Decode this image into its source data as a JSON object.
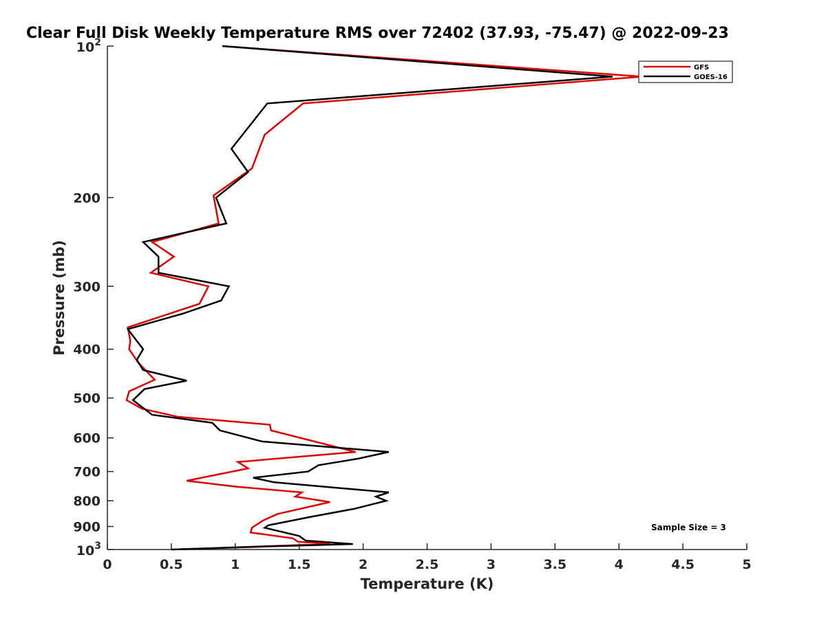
{
  "chart_data": {
    "type": "line",
    "title": "Clear Full Disk Weekly Temperature RMS over 72402 (37.93, -75.47) @ 2022-09-23",
    "xlabel": "Temperature (K)",
    "ylabel": "Pressure (mb)",
    "xlim": [
      0,
      5
    ],
    "ylim": [
      1000,
      100
    ],
    "yscale": "log",
    "grid": false,
    "legend_position": "top-right",
    "x_ticks": [
      "0",
      "0.5",
      "1",
      "1.5",
      "2",
      "2.5",
      "3",
      "3.5",
      "4",
      "4.5",
      "5"
    ],
    "x_tick_values": [
      0,
      0.5,
      1,
      1.5,
      2,
      2.5,
      3,
      3.5,
      4,
      4.5,
      5
    ],
    "y_ticks": [
      {
        "value": 100,
        "base": "10",
        "exp": "2"
      },
      {
        "value": 200,
        "label": "200"
      },
      {
        "value": 300,
        "label": "300"
      },
      {
        "value": 400,
        "label": "400"
      },
      {
        "value": 500,
        "label": "500"
      },
      {
        "value": 600,
        "label": "600"
      },
      {
        "value": 700,
        "label": "700"
      },
      {
        "value": 800,
        "label": "800"
      },
      {
        "value": 900,
        "label": "900"
      },
      {
        "value": 1000,
        "base": "10",
        "exp": "3"
      }
    ],
    "series": [
      {
        "name": "GFS",
        "color": "#e00000",
        "points": [
          [
            0.9,
            100
          ],
          [
            4.18,
            115
          ],
          [
            1.53,
            130
          ],
          [
            1.23,
            150
          ],
          [
            1.13,
            175
          ],
          [
            0.83,
            198
          ],
          [
            0.87,
            225
          ],
          [
            0.35,
            245
          ],
          [
            0.52,
            262
          ],
          [
            0.34,
            282
          ],
          [
            0.79,
            300
          ],
          [
            0.72,
            325
          ],
          [
            0.16,
            362
          ],
          [
            0.18,
            385
          ],
          [
            0.17,
            400
          ],
          [
            0.24,
            425
          ],
          [
            0.37,
            460
          ],
          [
            0.17,
            485
          ],
          [
            0.15,
            505
          ],
          [
            0.27,
            525
          ],
          [
            0.55,
            545
          ],
          [
            1.27,
            565
          ],
          [
            1.28,
            580
          ],
          [
            1.94,
            640
          ],
          [
            1.02,
            670
          ],
          [
            1.1,
            690
          ],
          [
            0.62,
            730
          ],
          [
            1.0,
            750
          ],
          [
            1.52,
            770
          ],
          [
            1.47,
            785
          ],
          [
            1.74,
            805
          ],
          [
            1.33,
            850
          ],
          [
            1.22,
            875
          ],
          [
            1.13,
            905
          ],
          [
            1.12,
            925
          ],
          [
            1.45,
            950
          ],
          [
            1.49,
            965
          ],
          [
            1.74,
            975
          ],
          [
            0.5,
            1000
          ]
        ]
      },
      {
        "name": "GOES-16",
        "color": "#000000",
        "points": [
          [
            0.9,
            100
          ],
          [
            3.95,
            115
          ],
          [
            1.25,
            130
          ],
          [
            0.97,
            160
          ],
          [
            1.1,
            178
          ],
          [
            0.85,
            200
          ],
          [
            0.93,
            225
          ],
          [
            0.28,
            245
          ],
          [
            0.4,
            262
          ],
          [
            0.4,
            282
          ],
          [
            0.95,
            300
          ],
          [
            0.89,
            320
          ],
          [
            0.59,
            340
          ],
          [
            0.16,
            365
          ],
          [
            0.28,
            400
          ],
          [
            0.23,
            420
          ],
          [
            0.28,
            440
          ],
          [
            0.62,
            462
          ],
          [
            0.29,
            480
          ],
          [
            0.2,
            505
          ],
          [
            0.35,
            540
          ],
          [
            0.82,
            560
          ],
          [
            0.88,
            580
          ],
          [
            1.21,
            610
          ],
          [
            2.2,
            640
          ],
          [
            1.96,
            660
          ],
          [
            1.65,
            680
          ],
          [
            1.57,
            700
          ],
          [
            1.14,
            720
          ],
          [
            1.3,
            735
          ],
          [
            2.2,
            770
          ],
          [
            2.1,
            785
          ],
          [
            2.18,
            800
          ],
          [
            1.93,
            830
          ],
          [
            1.6,
            860
          ],
          [
            1.26,
            895
          ],
          [
            1.23,
            905
          ],
          [
            1.5,
            940
          ],
          [
            1.55,
            960
          ],
          [
            1.92,
            975
          ],
          [
            1.3,
            985
          ],
          [
            0.5,
            1000
          ]
        ]
      }
    ],
    "annotation": "Sample Size = 3"
  }
}
